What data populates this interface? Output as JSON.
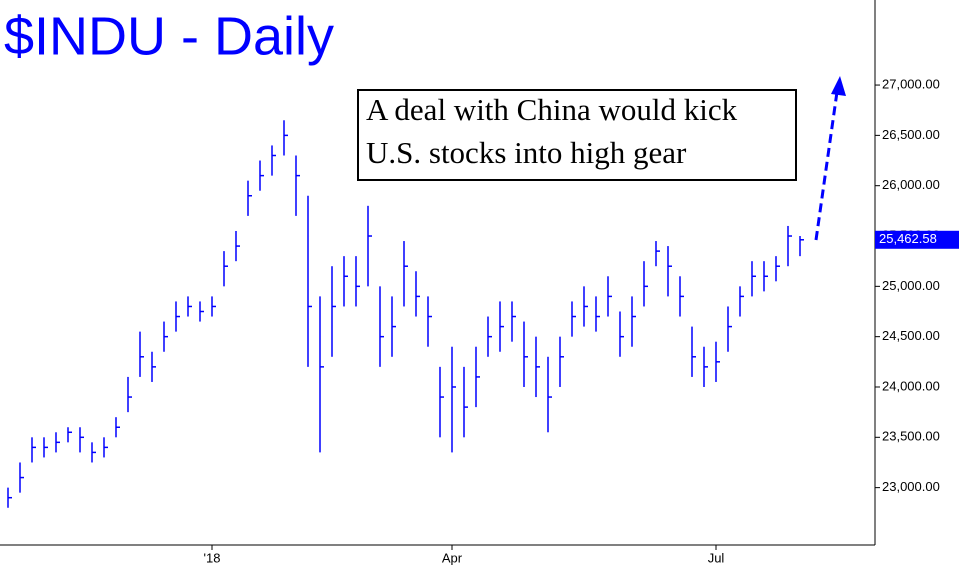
{
  "chart_data": {
    "type": "hlc",
    "title": "$INDU - Daily",
    "annotation": [
      "A deal with China would kick",
      "U.S. stocks into high gear"
    ],
    "color": "#0000ff",
    "categories": [
      null,
      null,
      null,
      null,
      null,
      null,
      null,
      null,
      null,
      null,
      null,
      null,
      null,
      null,
      null,
      null,
      null,
      "'18",
      null,
      null,
      null,
      null,
      null,
      null,
      null,
      null,
      null,
      null,
      null,
      null,
      null,
      null,
      null,
      null,
      null,
      null,
      null,
      "Apr",
      null,
      null,
      null,
      null,
      null,
      null,
      null,
      null,
      null,
      null,
      null,
      null,
      null,
      null,
      null,
      null,
      null,
      null,
      null,
      null,
      null,
      "Jul",
      null,
      null,
      null,
      null,
      null,
      null,
      null
    ],
    "high": [
      23000,
      23250,
      23500,
      23500,
      23550,
      23600,
      23600,
      23450,
      23500,
      23700,
      24100,
      24550,
      24350,
      24650,
      24850,
      24900,
      24850,
      24900,
      25350,
      25550,
      26050,
      26250,
      26400,
      26650,
      26300,
      25900,
      24900,
      25200,
      25300,
      25300,
      25800,
      25000,
      24900,
      25450,
      25150,
      24900,
      24200,
      24400,
      24200,
      24400,
      24700,
      24850,
      24850,
      24650,
      24500,
      24300,
      24500,
      24850,
      25000,
      24900,
      25100,
      24750,
      24900,
      25250,
      25450,
      25400,
      25100,
      24600,
      24400,
      24450,
      24800,
      25000,
      25250,
      25250,
      25300,
      25600,
      25500
    ],
    "low": [
      22800,
      22950,
      23250,
      23300,
      23350,
      23450,
      23350,
      23250,
      23300,
      23500,
      23750,
      24100,
      24050,
      24350,
      24550,
      24700,
      24650,
      24700,
      25000,
      25250,
      25700,
      25950,
      26100,
      26300,
      25700,
      24200,
      23350,
      24300,
      24800,
      24800,
      25000,
      24200,
      24300,
      24800,
      24700,
      24400,
      23500,
      23350,
      23500,
      23800,
      24300,
      24350,
      24450,
      24000,
      23900,
      23550,
      24000,
      24500,
      24600,
      24550,
      24700,
      24300,
      24400,
      24800,
      25200,
      24900,
      24700,
      24100,
      24000,
      24050,
      24350,
      24700,
      24900,
      24950,
      25050,
      25200,
      25300
    ],
    "close": [
      22900,
      23100,
      23400,
      23400,
      23450,
      23550,
      23500,
      23350,
      23400,
      23600,
      23900,
      24300,
      24200,
      24500,
      24700,
      24800,
      24750,
      24800,
      25200,
      25400,
      25900,
      26100,
      26300,
      26500,
      26100,
      24800,
      24200,
      24800,
      25100,
      25000,
      25500,
      24500,
      24600,
      25200,
      24900,
      24700,
      23900,
      24000,
      23800,
      24100,
      24500,
      24600,
      24700,
      24300,
      24200,
      23900,
      24300,
      24700,
      24800,
      24700,
      24900,
      24500,
      24700,
      25000,
      25350,
      25200,
      24900,
      24300,
      24200,
      24250,
      24600,
      24900,
      25100,
      25100,
      25200,
      25500,
      25462.58
    ],
    "last_price": {
      "value": 25462.58,
      "label": "25,462.58"
    },
    "ylim": [
      22430,
      27845
    ],
    "yticks": [
      {
        "value": 23000,
        "label": "23,000.00"
      },
      {
        "value": 23500,
        "label": "23,500.00"
      },
      {
        "value": 24000,
        "label": "24,000.00"
      },
      {
        "value": 24500,
        "label": "24,500.00"
      },
      {
        "value": 25000,
        "label": "25,000.00"
      },
      {
        "value": 25500,
        "label": "25,500.00"
      },
      {
        "value": 26000,
        "label": "26,000.00"
      },
      {
        "value": 26500,
        "label": "26,500.00"
      },
      {
        "value": 27000,
        "label": "27,000.00"
      }
    ]
  }
}
